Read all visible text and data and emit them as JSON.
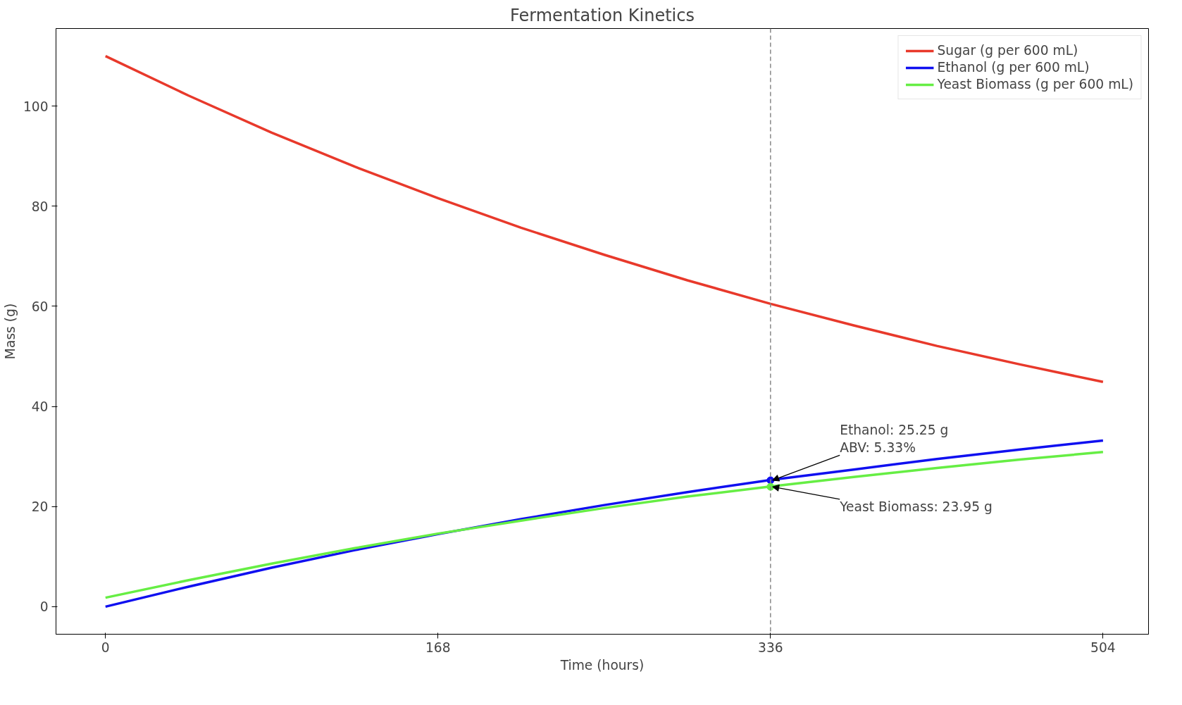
{
  "chart_data": {
    "type": "line",
    "title": "Fermentation Kinetics",
    "xlabel": "Time (hours)",
    "ylabel": "Mass (g)",
    "x": [
      0,
      42,
      84,
      126,
      168,
      210,
      252,
      294,
      336,
      378,
      420,
      462,
      504
    ],
    "series": [
      {
        "name": "Sugar (g per 600 mL)",
        "color": "#e8392b",
        "values": [
          110,
          102.1,
          94.7,
          87.9,
          81.6,
          75.7,
          70.3,
          65.2,
          60.5,
          56.2,
          52.1,
          48.4,
          44.9
        ]
      },
      {
        "name": "Ethanol (g per 600 mL)",
        "color": "#1010f0",
        "values": [
          0,
          4.0,
          7.8,
          11.3,
          14.5,
          17.5,
          20.3,
          22.9,
          25.3,
          27.4,
          29.5,
          31.4,
          33.2
        ]
      },
      {
        "name": "Yeast Biomass (g per 600 mL)",
        "color": "#66ee44",
        "values": [
          1.8,
          5.3,
          8.6,
          11.7,
          14.6,
          17.2,
          19.7,
          22.0,
          24.0,
          25.9,
          27.7,
          29.4,
          30.9
        ]
      }
    ],
    "xlim": [
      -25,
      527
    ],
    "ylim": [
      -5.5,
      115.5
    ],
    "xticks": [
      0,
      168,
      336,
      504
    ],
    "yticks": [
      0,
      20,
      40,
      60,
      80,
      100
    ],
    "ref_lines": [
      {
        "axis": "x",
        "value": 336,
        "color": "#888888",
        "line_style": "dashed"
      }
    ],
    "annotations": [
      {
        "text": "Ethanol: 25.25 g\nABV: 5.33%",
        "x": 336,
        "y": 25.25
      },
      {
        "text": "Yeast Biomass: 23.95 g",
        "x": 336,
        "y": 23.95
      }
    ],
    "grid": false,
    "legend": "top right",
    "line_style": "solid",
    "marker": "none"
  }
}
